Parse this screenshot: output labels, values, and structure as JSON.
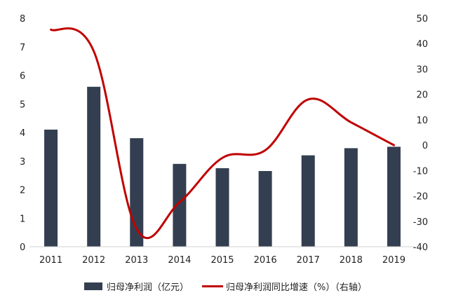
{
  "chart_data": {
    "type": "bar+line",
    "categories": [
      "2011",
      "2012",
      "2013",
      "2014",
      "2015",
      "2016",
      "2017",
      "2018",
      "2019"
    ],
    "series": [
      {
        "name": "归母净利润（亿元）",
        "type": "bar",
        "axis": "left",
        "color": "#333f50",
        "values": [
          4.1,
          5.6,
          3.8,
          2.9,
          2.75,
          2.65,
          3.2,
          3.45,
          3.5
        ]
      },
      {
        "name": "归母净利润同比增速（%）（右轴）",
        "type": "line",
        "axis": "right",
        "color": "#c00000",
        "values": [
          45.5,
          37,
          -33,
          -22.5,
          -5,
          -2,
          18,
          9,
          0
        ]
      }
    ],
    "y_left": {
      "min": 0,
      "max": 8,
      "ticks": [
        0,
        1,
        2,
        3,
        4,
        5,
        6,
        7,
        8
      ]
    },
    "y_right": {
      "min": -40,
      "max": 50,
      "ticks": [
        -40,
        -30,
        -20,
        -10,
        0,
        10,
        20,
        30,
        40,
        50
      ]
    },
    "grid": false,
    "legend_position": "bottom"
  }
}
